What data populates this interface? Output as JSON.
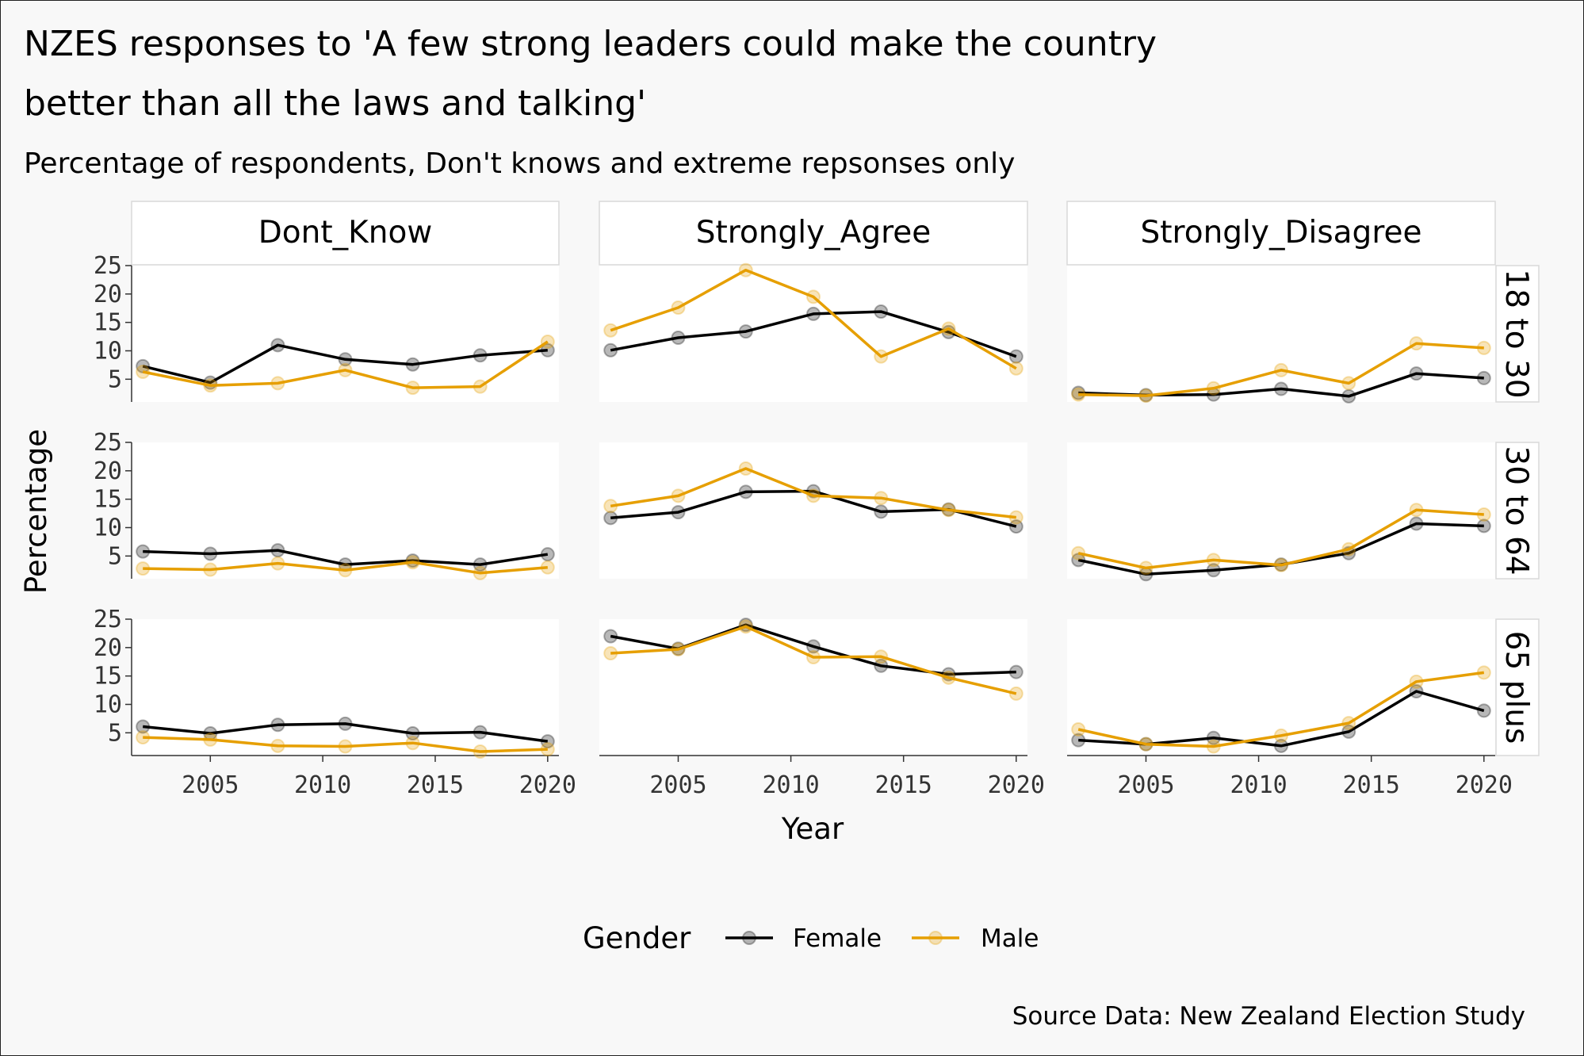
{
  "title_line1": "NZES responses to 'A few strong leaders could make the country",
  "title_line2": "better than all the laws and talking'",
  "subtitle": "Percentage of respondents, Don't knows and extreme repsonses only",
  "caption": "Source Data: New Zealand Election Study",
  "legend": {
    "title": "Gender"
  },
  "chart_data": {
    "type": "line",
    "xlabel": "Year",
    "ylabel": "Percentage",
    "xlim": [
      2001.5,
      2020.5
    ],
    "ylim": [
      1,
      25
    ],
    "x_ticks": [
      2005,
      2010,
      2015,
      2020
    ],
    "y_ticks": [
      5,
      10,
      15,
      20,
      25
    ],
    "columns": [
      "Dont_Know",
      "Strongly_Agree",
      "Strongly_Disagree"
    ],
    "rows": [
      "18 to 30",
      "30 to 64",
      "65 plus"
    ],
    "x": [
      2002,
      2005,
      2008,
      2011,
      2014,
      2017,
      2020
    ],
    "series_styles": [
      {
        "name": "Female",
        "color": "#000000"
      },
      {
        "name": "Male",
        "color": "#E69F00"
      }
    ],
    "panels": [
      {
        "column": "Dont_Know",
        "row": "18 to 30",
        "series": [
          {
            "name": "Female",
            "values": [
              7.3,
              4.4,
              11.0,
              8.5,
              7.6,
              9.2,
              10.1
            ]
          },
          {
            "name": "Male",
            "values": [
              6.3,
              3.9,
              4.3,
              6.6,
              3.5,
              3.7,
              11.6
            ]
          }
        ]
      },
      {
        "column": "Strongly_Agree",
        "row": "18 to 30",
        "series": [
          {
            "name": "Female",
            "values": [
              10.1,
              12.3,
              13.4,
              16.5,
              16.9,
              13.3,
              9.0
            ]
          },
          {
            "name": "Male",
            "values": [
              13.6,
              17.6,
              24.2,
              19.5,
              9.0,
              13.9,
              6.9
            ]
          }
        ]
      },
      {
        "column": "Strongly_Disagree",
        "row": "18 to 30",
        "series": [
          {
            "name": "Female",
            "values": [
              2.6,
              2.2,
              2.3,
              3.3,
              2.0,
              6.0,
              5.2
            ]
          },
          {
            "name": "Male",
            "values": [
              2.3,
              2.1,
              3.4,
              6.6,
              4.3,
              11.3,
              10.5
            ]
          }
        ]
      },
      {
        "column": "Dont_Know",
        "row": "30 to 64",
        "series": [
          {
            "name": "Female",
            "values": [
              5.8,
              5.4,
              6.0,
              3.5,
              4.2,
              3.5,
              5.3
            ]
          },
          {
            "name": "Male",
            "values": [
              2.8,
              2.6,
              3.7,
              2.5,
              3.9,
              2.0,
              3.0
            ]
          }
        ]
      },
      {
        "column": "Strongly_Agree",
        "row": "30 to 64",
        "series": [
          {
            "name": "Female",
            "values": [
              11.7,
              12.7,
              16.3,
              16.4,
              12.8,
              13.2,
              10.2
            ]
          },
          {
            "name": "Male",
            "values": [
              13.8,
              15.6,
              20.4,
              15.6,
              15.2,
              13.1,
              11.8
            ]
          }
        ]
      },
      {
        "column": "Strongly_Disagree",
        "row": "30 to 64",
        "series": [
          {
            "name": "Female",
            "values": [
              4.3,
              1.8,
              2.5,
              3.5,
              5.5,
              10.7,
              10.3
            ]
          },
          {
            "name": "Male",
            "values": [
              5.5,
              2.9,
              4.3,
              3.4,
              6.2,
              13.1,
              12.3
            ]
          }
        ]
      },
      {
        "column": "Dont_Know",
        "row": "65 plus",
        "series": [
          {
            "name": "Female",
            "values": [
              6.1,
              4.9,
              6.4,
              6.6,
              4.9,
              5.1,
              3.5
            ]
          },
          {
            "name": "Male",
            "values": [
              4.2,
              3.8,
              2.7,
              2.6,
              3.2,
              1.7,
              2.1
            ]
          }
        ]
      },
      {
        "column": "Strongly_Agree",
        "row": "65 plus",
        "series": [
          {
            "name": "Female",
            "values": [
              22.0,
              19.8,
              24.0,
              20.2,
              16.8,
              15.3,
              15.7
            ]
          },
          {
            "name": "Male",
            "values": [
              19.0,
              19.7,
              23.7,
              18.3,
              18.4,
              14.7,
              11.9
            ]
          }
        ]
      },
      {
        "column": "Strongly_Disagree",
        "row": "65 plus",
        "series": [
          {
            "name": "Female",
            "values": [
              3.7,
              3.0,
              4.1,
              2.7,
              5.2,
              12.3,
              8.9
            ]
          },
          {
            "name": "Male",
            "values": [
              5.6,
              3.0,
              2.6,
              4.5,
              6.7,
              14.0,
              15.6
            ]
          }
        ]
      }
    ]
  }
}
